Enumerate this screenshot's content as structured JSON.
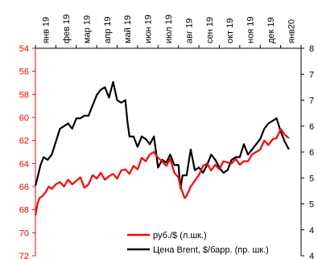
{
  "chart_data": {
    "type": "line",
    "x_categories": [
      "янв 19",
      "фев 19",
      "мар 19",
      "апр 19",
      "май 19",
      "июн 19",
      "июл 19",
      "авг 19",
      "сен 19",
      "окт 19",
      "ноя 19",
      "дек 19",
      "янв20"
    ],
    "left_axis": {
      "ticks": [
        "54",
        "56",
        "58",
        "60",
        "62",
        "64",
        "66",
        "68",
        "70",
        "72"
      ],
      "min": 54,
      "max": 72,
      "inverted": true,
      "color": "#ff0000"
    },
    "right_axis": {
      "ticks": [
        "8",
        "7",
        "7",
        "6",
        "6",
        "5",
        "5",
        "4",
        "4"
      ],
      "tick_values": [
        8,
        7.5,
        7,
        6.5,
        6,
        5.5,
        5,
        4.5,
        4
      ],
      "min": 4,
      "max": 8,
      "color": "#000000"
    },
    "series": [
      {
        "name": "руб./$ (л.шк.)",
        "axis": "left",
        "color": "#ff0000",
        "x": [
          0,
          0.1,
          0.2,
          0.35,
          0.5,
          0.65,
          0.8,
          1.0,
          1.2,
          1.4,
          1.6,
          1.8,
          2.0,
          2.2,
          2.4,
          2.6,
          2.8,
          3.0,
          3.2,
          3.4,
          3.6,
          3.8,
          4.0,
          4.2,
          4.4,
          4.6,
          4.8,
          5.0,
          5.2,
          5.4,
          5.6,
          5.8,
          6.0,
          6.2,
          6.4,
          6.6,
          6.8,
          7.0,
          7.1,
          7.2,
          7.3,
          7.4,
          7.5,
          7.6,
          7.8,
          8.0,
          8.2,
          8.4,
          8.6,
          8.8,
          9.0,
          9.2,
          9.4,
          9.6,
          9.8,
          10.0,
          10.2,
          10.4,
          10.6,
          10.8,
          11.0,
          11.2,
          11.4,
          11.6,
          11.8,
          12.0,
          12.2,
          12.4
        ],
        "values": [
          68.5,
          67.5,
          67.0,
          66.8,
          66.5,
          66.0,
          66.2,
          65.8,
          65.6,
          66.0,
          65.4,
          65.8,
          65.5,
          65.2,
          66.1,
          65.8,
          65.0,
          65.3,
          64.8,
          65.4,
          65.1,
          64.9,
          65.3,
          64.6,
          64.5,
          64.9,
          64.2,
          64.5,
          63.5,
          63.8,
          63.2,
          63.0,
          63.5,
          63.8,
          64.2,
          63.6,
          64.8,
          65.2,
          66.0,
          66.5,
          67.0,
          66.8,
          66.4,
          66.0,
          65.5,
          65.0,
          64.2,
          64.0,
          64.6,
          64.1,
          64.5,
          63.8,
          63.9,
          64.0,
          63.6,
          64.1,
          63.8,
          63.8,
          63.2,
          63.0,
          62.8,
          62.0,
          62.4,
          61.9,
          61.8,
          61.0,
          61.5,
          61.8
        ]
      },
      {
        "name": "Цена Brent, $/барр. (пр. шк.)",
        "axis": "right",
        "color": "#000000",
        "x": [
          0,
          0.1,
          0.25,
          0.4,
          0.6,
          0.8,
          1.0,
          1.2,
          1.4,
          1.6,
          1.8,
          2.0,
          2.2,
          2.4,
          2.6,
          2.8,
          3.0,
          3.2,
          3.4,
          3.6,
          3.8,
          4.0,
          4.2,
          4.4,
          4.5,
          4.6,
          4.8,
          5.0,
          5.2,
          5.4,
          5.6,
          5.8,
          6.0,
          6.2,
          6.4,
          6.6,
          6.8,
          7.0,
          7.1,
          7.2,
          7.4,
          7.6,
          7.8,
          8.0,
          8.2,
          8.4,
          8.6,
          8.8,
          9.0,
          9.2,
          9.4,
          9.6,
          9.8,
          10.0,
          10.2,
          10.4,
          10.6,
          10.8,
          11.0,
          11.2,
          11.4,
          11.6,
          11.8,
          12.0,
          12.2,
          12.4
        ],
        "values": [
          5.35,
          5.5,
          5.75,
          5.9,
          5.85,
          5.95,
          6.2,
          6.45,
          6.5,
          6.55,
          6.45,
          6.65,
          6.65,
          6.7,
          6.7,
          6.9,
          7.1,
          7.2,
          7.25,
          7.05,
          7.35,
          7.0,
          6.95,
          7.0,
          6.6,
          6.3,
          6.3,
          6.1,
          6.3,
          6.25,
          6.15,
          6.3,
          5.7,
          5.85,
          5.8,
          5.95,
          5.75,
          5.75,
          5.3,
          5.55,
          5.55,
          6.05,
          5.65,
          5.7,
          5.6,
          5.75,
          5.95,
          5.85,
          5.7,
          5.6,
          5.65,
          5.85,
          5.9,
          5.9,
          6.15,
          5.95,
          6.05,
          6.15,
          6.25,
          6.45,
          6.55,
          6.6,
          6.65,
          6.4,
          6.2,
          6.05
        ]
      }
    ],
    "legend": {
      "entries": [
        "руб./$ (л.шк.)",
        "Цена Brent, $/барр. (пр. шк.)"
      ],
      "position": "bottom-right"
    }
  }
}
